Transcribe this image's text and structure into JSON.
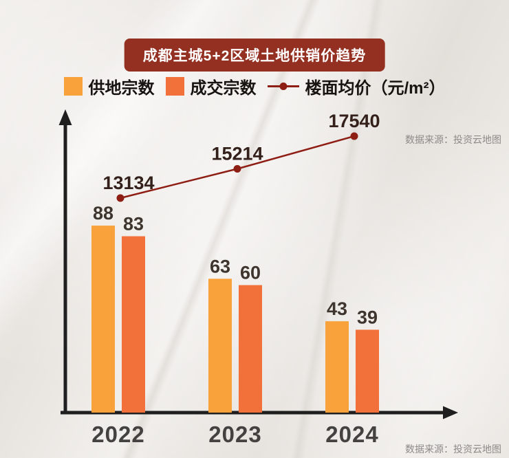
{
  "title": "成都主城5+2区域土地供销价趋势",
  "source_text": "数据来源：投资云地图",
  "colors": {
    "supply_bar": "#F9A23B",
    "sold_bar": "#F2703A",
    "price_line": "#8E1E14",
    "title_badge_bg": "#943021",
    "axis": "#1f1f1f",
    "bar_label": "#3e352e",
    "line_label": "#33201a",
    "year_label": "#434240"
  },
  "legend": [
    {
      "label": "供地宗数",
      "type": "square",
      "color": "#F9A23B"
    },
    {
      "label": "成交宗数",
      "type": "square",
      "color": "#F2703A"
    },
    {
      "label": "楼面均价（元/m²）",
      "type": "line",
      "color": "#8E1E14"
    }
  ],
  "chart_data": {
    "type": "bar+line",
    "title": "成都主城5+2区域土地供销价趋势",
    "categories": [
      "2022",
      "2023",
      "2024"
    ],
    "series": [
      {
        "name": "供地宗数",
        "type": "bar",
        "color": "#F9A23B",
        "values": [
          88,
          63,
          43
        ]
      },
      {
        "name": "成交宗数",
        "type": "bar",
        "color": "#F2703A",
        "values": [
          83,
          60,
          39
        ]
      },
      {
        "name": "楼面均价（元/m²）",
        "type": "line",
        "color": "#8E1E14",
        "values": [
          13134,
          15214,
          17540
        ]
      }
    ],
    "xlabel": "",
    "ylabel": "",
    "legend_position": "top",
    "gridlines": false,
    "axes": {
      "x_visible": true,
      "y_visible": true,
      "arrowheads": true
    },
    "source": "数据来源：投资云地图"
  }
}
